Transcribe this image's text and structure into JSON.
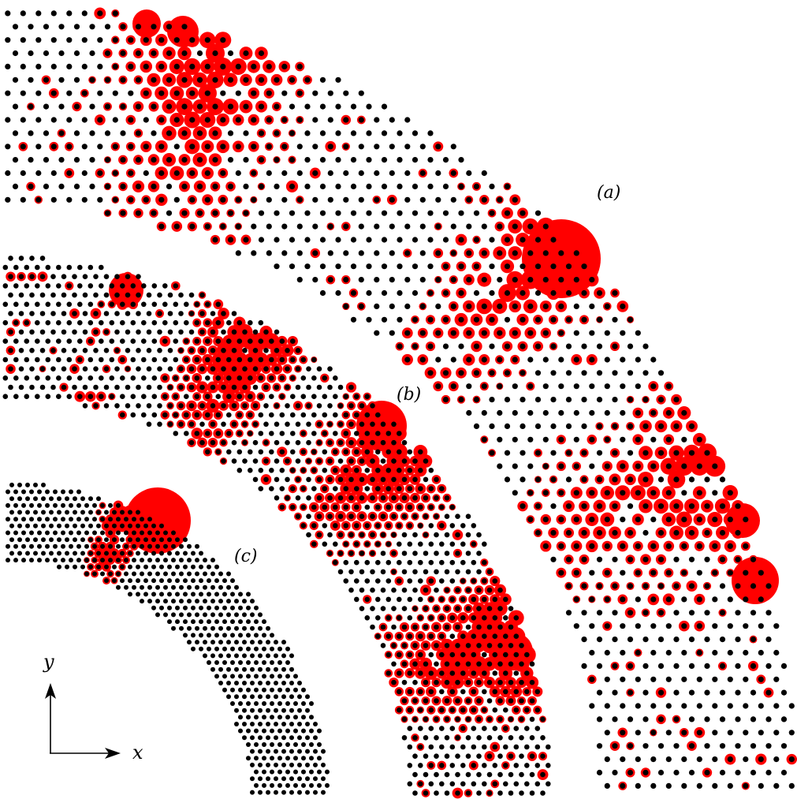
{
  "colors": {
    "atom": "#000000",
    "highlight": "#ff0000",
    "background": "#ffffff"
  },
  "panels": [
    {
      "id": "a",
      "label": "(a)",
      "density": "sparse"
    },
    {
      "id": "b",
      "label": "(b)",
      "density": "medium"
    },
    {
      "id": "c",
      "label": "(c)",
      "density": "dense"
    }
  ],
  "axes": {
    "x_label": "x",
    "y_label": "y"
  }
}
